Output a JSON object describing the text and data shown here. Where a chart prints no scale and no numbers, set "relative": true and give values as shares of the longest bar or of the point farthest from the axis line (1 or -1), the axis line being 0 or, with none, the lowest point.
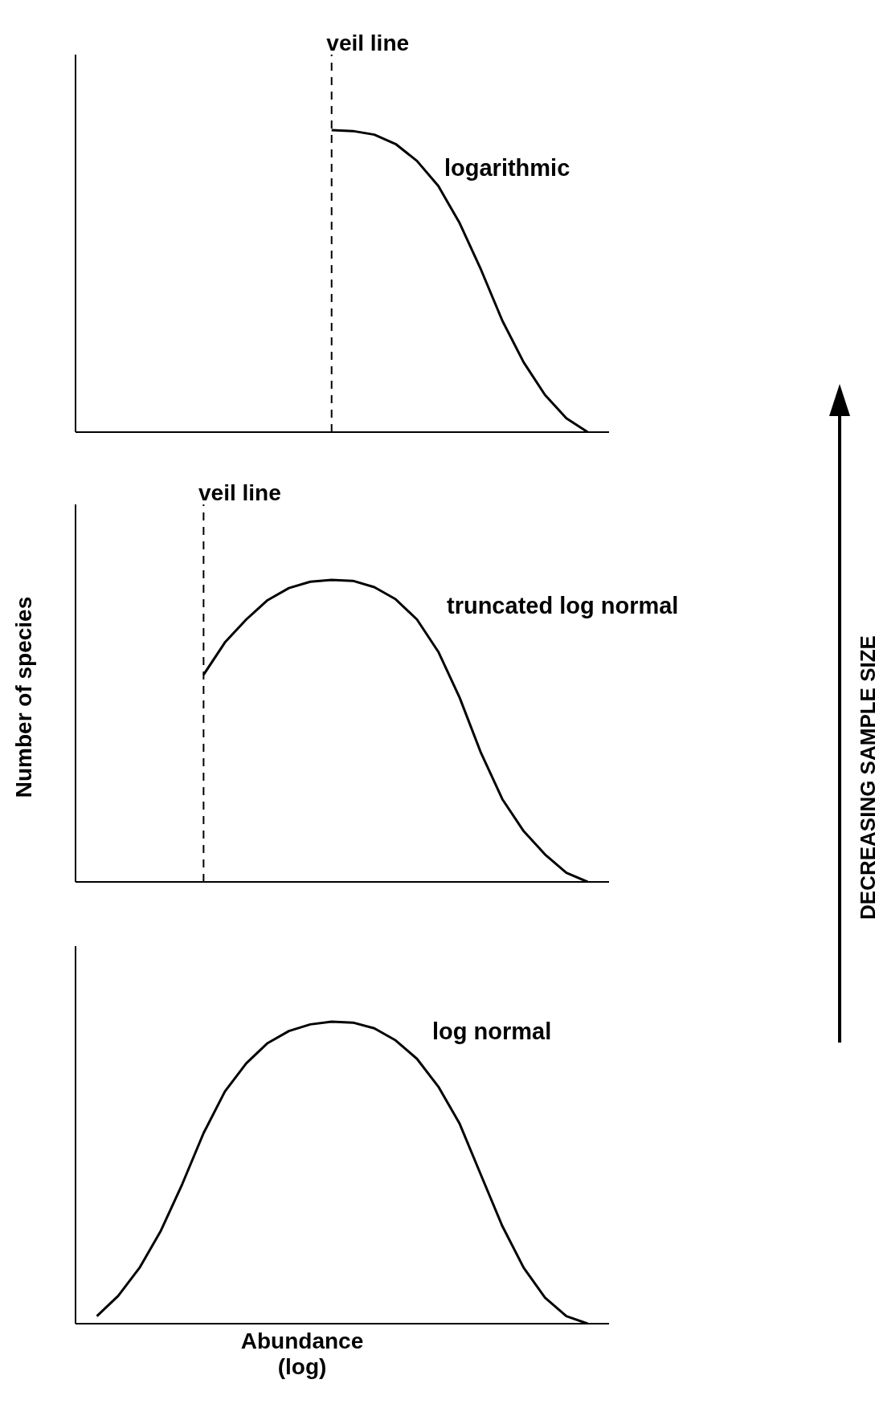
{
  "chart_data": [
    {
      "type": "line",
      "relative": true,
      "marker": "none",
      "annotations": [
        "veil line"
      ],
      "categories": [
        null,
        null,
        null,
        null,
        null,
        null,
        null,
        null,
        null,
        null,
        null,
        null,
        null,
        null,
        null,
        null,
        null,
        null,
        null,
        null,
        null,
        null,
        null,
        null,
        null,
        null
      ],
      "series": [
        {
          "name": "logarithmic",
          "color": "#000000",
          "values": [
            null,
            null,
            null,
            null,
            null,
            null,
            null,
            null,
            null,
            null,
            null,
            null,
            1,
            0.997,
            0.985,
            0.954,
            0.898,
            0.815,
            0.692,
            0.538,
            0.369,
            0.231,
            0.123,
            0.046,
            0,
            null
          ]
        }
      ]
    },
    {
      "type": "line",
      "relative": true,
      "marker": "none",
      "ylabel": "Number of species",
      "annotations": [
        "veil line",
        "DECREASING SAMPLE SIZE"
      ],
      "categories": [
        null,
        null,
        null,
        null,
        null,
        null,
        null,
        null,
        null,
        null,
        null,
        null,
        null,
        null,
        null,
        null,
        null,
        null,
        null,
        null,
        null,
        null,
        null,
        null,
        null,
        null
      ],
      "series": [
        {
          "name": "truncated log normal",
          "color": "#000000",
          "values": [
            null,
            null,
            null,
            null,
            null,
            null,
            0.686,
            0.793,
            0.869,
            0.933,
            0.973,
            0.994,
            1,
            0.997,
            0.976,
            0.936,
            0.869,
            0.762,
            0.61,
            0.427,
            0.274,
            0.168,
            0.091,
            0.03,
            0,
            null
          ]
        }
      ]
    },
    {
      "type": "line",
      "relative": true,
      "marker": "none",
      "xlabel": "Abundance (log)",
      "categories": [
        null,
        null,
        null,
        null,
        null,
        null,
        null,
        null,
        null,
        null,
        null,
        null,
        null,
        null,
        null,
        null,
        null,
        null,
        null,
        null,
        null,
        null,
        null,
        null,
        null,
        null
      ],
      "series": [
        {
          "name": "log normal",
          "color": "#000000",
          "values": [
            null,
            0.025,
            0.092,
            0.185,
            0.308,
            0.462,
            0.631,
            0.769,
            0.862,
            0.929,
            0.969,
            0.991,
            1,
            0.997,
            0.978,
            0.938,
            0.877,
            0.785,
            0.662,
            0.492,
            0.323,
            0.185,
            0.086,
            0.025,
            0,
            null
          ]
        }
      ]
    }
  ]
}
